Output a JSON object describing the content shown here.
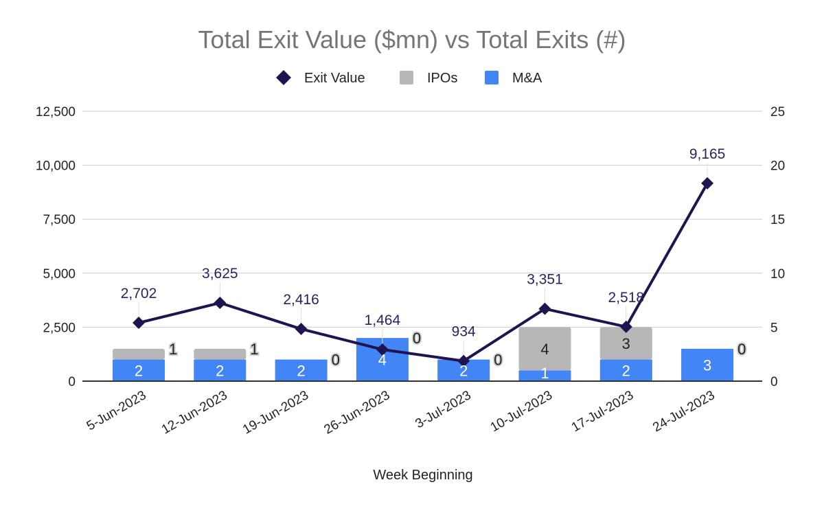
{
  "chart_data": {
    "type": "bar+line",
    "title": "Total Exit Value ($mn) vs Total Exits (#)",
    "xlabel": "Week Beginning",
    "ylabel_left": "",
    "ylabel_right": "",
    "categories": [
      "5-Jun-2023",
      "12-Jun-2023",
      "19-Jun-2023",
      "26-Jun-2023",
      "3-Jul-2023",
      "10-Jul-2023",
      "17-Jul-2023",
      "24-Jul-2023"
    ],
    "series": [
      {
        "name": "Exit Value",
        "type": "line",
        "axis": "left",
        "color": "#20134f",
        "values": [
          2702,
          3625,
          2416,
          1464,
          934,
          3351,
          2518,
          9165
        ],
        "labels": [
          "2,702",
          "3,625",
          "2,416",
          "1,464",
          "934",
          "3,351",
          "2,518",
          "9,165"
        ]
      },
      {
        "name": "IPOs",
        "type": "stacked-bar",
        "axis": "right",
        "color": "#b7b7b7",
        "values": [
          1,
          1,
          0,
          0,
          0,
          4,
          3,
          0
        ]
      },
      {
        "name": "M&A",
        "type": "stacked-bar",
        "axis": "right",
        "color": "#4285f4",
        "values": [
          2,
          2,
          2,
          4,
          2,
          1,
          2,
          3
        ]
      }
    ],
    "left_axis": {
      "range": [
        0,
        12500
      ],
      "ticks": [
        "0",
        "2,500",
        "5,000",
        "7,500",
        "10,000",
        "12,500"
      ]
    },
    "right_axis": {
      "range": [
        0,
        25
      ],
      "ticks": [
        "0",
        "5",
        "10",
        "15",
        "20",
        "25"
      ]
    },
    "legend": {
      "position": "top",
      "items": [
        "Exit Value",
        "IPOs",
        "M&A"
      ]
    },
    "grid": true
  }
}
